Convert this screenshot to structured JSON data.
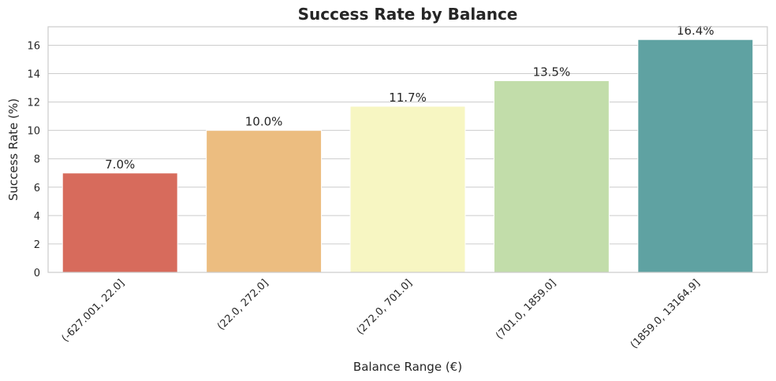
{
  "chart_data": {
    "type": "bar",
    "title": "Success Rate by Balance",
    "xlabel": "Balance Range (€)",
    "ylabel": "Success Rate (%)",
    "categories": [
      "(-627.001, 22.0]",
      "(22.0, 272.0]",
      "(272.0, 701.0]",
      "(701.0, 1859.0]",
      "(1859.0, 13164.9]"
    ],
    "values": [
      7.0,
      10.0,
      11.7,
      13.5,
      16.4
    ],
    "value_labels": [
      "7.0%",
      "10.0%",
      "11.7%",
      "13.5%",
      "16.4%"
    ],
    "colors": [
      "#d76b5c",
      "#ecbd80",
      "#f7f6c2",
      "#c2ddaa",
      "#5fa2a2"
    ],
    "ylim": [
      0,
      17.3
    ],
    "yticks": [
      0,
      2,
      4,
      6,
      8,
      10,
      12,
      14,
      16
    ],
    "grid": "horizontal",
    "x_tick_rotation": 45
  }
}
